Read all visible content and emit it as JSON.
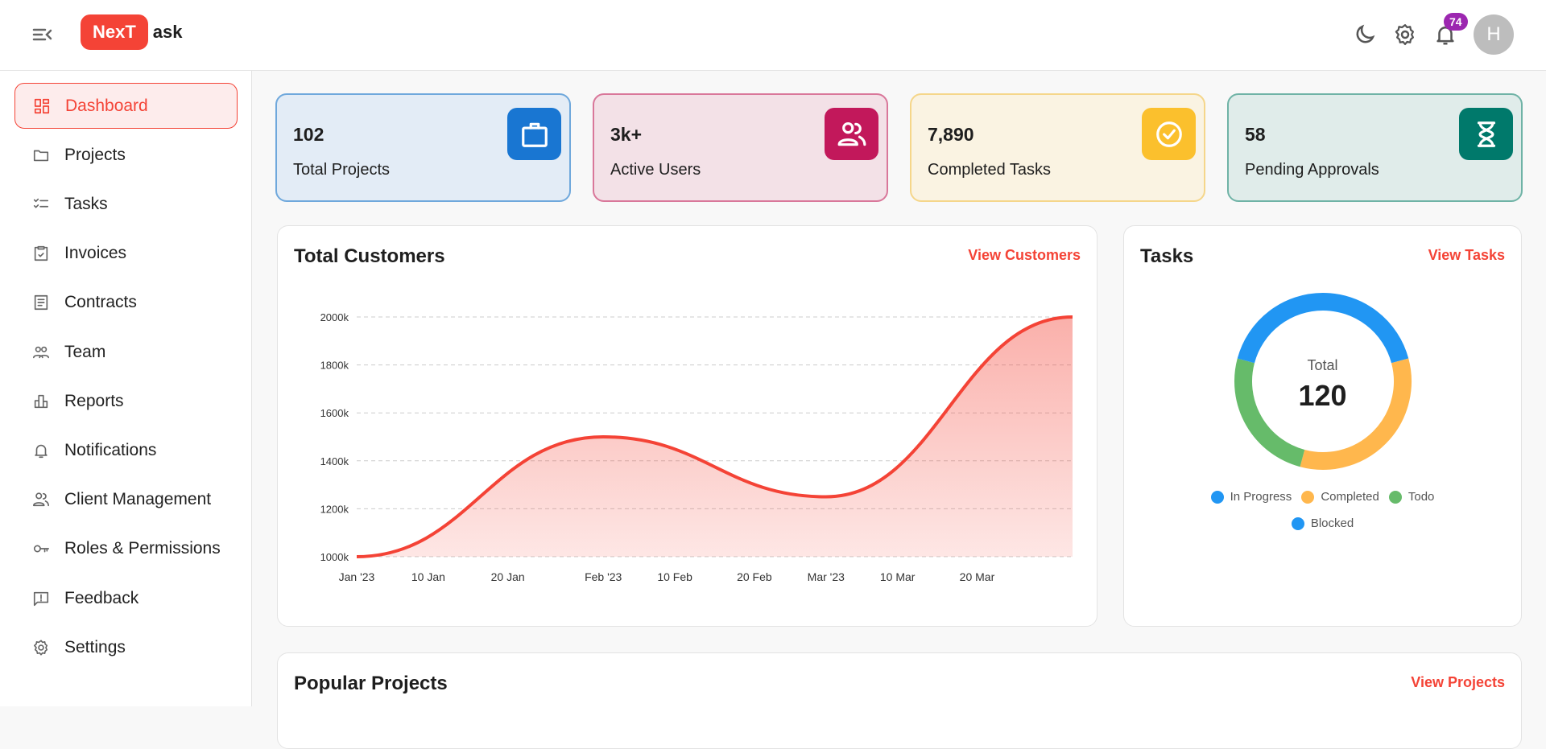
{
  "header": {
    "logo_badge": "NexT",
    "logo_rest": "ask",
    "notification_count": "74",
    "avatar_initial": "H",
    "icons": [
      "menu-collapse-icon",
      "moon-icon",
      "gear-icon",
      "bell-icon"
    ]
  },
  "sidebar": {
    "items": [
      {
        "label": "Dashboard",
        "icon": "dashboard-icon",
        "active": true
      },
      {
        "label": "Projects",
        "icon": "folder-icon"
      },
      {
        "label": "Tasks",
        "icon": "checklist-icon"
      },
      {
        "label": "Invoices",
        "icon": "clipboard-check-icon"
      },
      {
        "label": "Contracts",
        "icon": "document-icon"
      },
      {
        "label": "Team",
        "icon": "team-icon"
      },
      {
        "label": "Reports",
        "icon": "bar-chart-icon"
      },
      {
        "label": "Notifications",
        "icon": "bell-icon"
      },
      {
        "label": "Client Management",
        "icon": "users-icon"
      },
      {
        "label": "Roles & Permissions",
        "icon": "key-icon"
      },
      {
        "label": "Feedback",
        "icon": "feedback-icon"
      },
      {
        "label": "Settings",
        "icon": "gear-icon"
      }
    ]
  },
  "stats": [
    {
      "value": "102",
      "label": "Total Projects",
      "icon": "briefcase-icon",
      "bg": "#e3ecf6",
      "border": "#6fa8dc",
      "icon_bg": "#1976d2"
    },
    {
      "value": "3k+",
      "label": "Active Users",
      "icon": "users-icon",
      "bg": "#f3e1e7",
      "border": "#d9779a",
      "icon_bg": "#c2185b"
    },
    {
      "value": "7,890",
      "label": "Completed Tasks",
      "icon": "check-circle-icon",
      "bg": "#faf3e2",
      "border": "#f5d68a",
      "icon_bg": "#fbc02d"
    },
    {
      "value": "58",
      "label": "Pending Approvals",
      "icon": "hourglass-icon",
      "bg": "#e0ecea",
      "border": "#6fb3a6",
      "icon_bg": "#00796b"
    }
  ],
  "customers": {
    "title": "Total Customers",
    "link": "View Customers"
  },
  "tasks": {
    "title": "Tasks",
    "link": "View Tasks",
    "center_label": "Total",
    "center_value": "120"
  },
  "popular": {
    "title": "Popular Projects",
    "link": "View Projects"
  },
  "chart_data": [
    {
      "type": "area",
      "x": [
        "2023-01-01",
        "2023-02-01",
        "2023-03-01",
        "2023-04-01"
      ],
      "y": [
        1000,
        1500,
        1250,
        2000
      ],
      "yunit": "k",
      "ylim": [
        1000,
        2000
      ],
      "yticks": [
        "1000k",
        "1200k",
        "1400k",
        "1600k",
        "1800k",
        "2000k"
      ],
      "xticks": [
        "Jan '23",
        "10 Jan",
        "20 Jan",
        "Feb '23",
        "10 Feb",
        "20 Feb",
        "Mar '23",
        "10 Mar",
        "20 Mar"
      ],
      "grid": true,
      "color": "#f44336"
    },
    {
      "type": "pie",
      "donut": true,
      "categories": [
        "In Progress",
        "Completed",
        "Todo",
        "Blocked"
      ],
      "values": [
        25,
        40,
        30,
        25
      ],
      "colors": [
        "#2196f3",
        "#ffb74d",
        "#66bb6a",
        "#2196f3"
      ],
      "legend": "bottom"
    }
  ]
}
